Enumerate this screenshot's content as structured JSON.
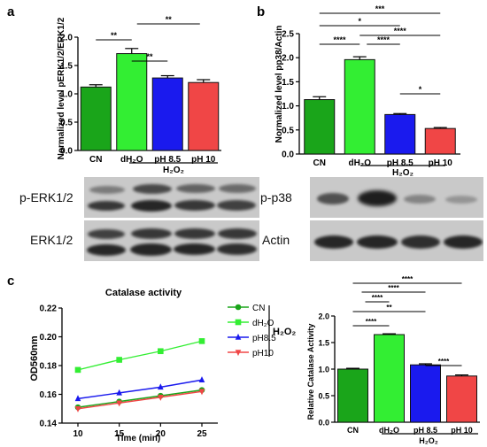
{
  "panels": {
    "a": "a",
    "b": "b",
    "c": "c"
  },
  "h2o2_label": "H₂O₂",
  "blots": {
    "a": {
      "top": "p-ERK1/2",
      "bottom": "ERK1/2"
    },
    "b": {
      "top": "p-p38",
      "bottom": "Actin"
    }
  },
  "colors": {
    "CN": "#1aa51a",
    "dH2O": "#33ee33",
    "pH 8.5": "#1a1aee",
    "pH 10": "#f04646",
    "blot_bg": "#c9c9c9",
    "band": "#1e1e1e"
  },
  "chart_data": [
    {
      "id": "a",
      "type": "bar",
      "ylabel": "Normalized level pERK1/2/ERK1/2",
      "categories": [
        "CN",
        "dH₂O",
        "pH 8.5",
        "pH 10"
      ],
      "values": [
        1.12,
        1.71,
        1.28,
        1.2
      ],
      "errors": [
        0.04,
        0.09,
        0.04,
        0.05
      ],
      "ylim": [
        0,
        2.0
      ],
      "yticks": [
        "0.0",
        "0.5",
        "1.0",
        "1.5",
        "2.0"
      ],
      "significance": [
        {
          "from": 0,
          "to": 1,
          "label": "**"
        },
        {
          "from": 1,
          "to": 2,
          "label": "**"
        },
        {
          "from": 1,
          "to": 3,
          "label": "**"
        }
      ]
    },
    {
      "id": "b",
      "type": "bar",
      "ylabel": "Normalized level pp38/Actin",
      "categories": [
        "CN",
        "dH₂O",
        "pH 8.5",
        "pH 10"
      ],
      "values": [
        1.13,
        1.96,
        0.82,
        0.53
      ],
      "errors": [
        0.06,
        0.06,
        0.02,
        0.02
      ],
      "ylim": [
        0,
        2.5
      ],
      "yticks": [
        "0.0",
        "0.5",
        "1.0",
        "1.5",
        "2.0",
        "2.5"
      ],
      "significance": [
        {
          "from": 0,
          "to": 3,
          "label": "***"
        },
        {
          "from": 0,
          "to": 2,
          "label": "*"
        },
        {
          "from": 1,
          "to": 3,
          "label": "****"
        },
        {
          "from": 0,
          "to": 1,
          "label": "****"
        },
        {
          "from": 1,
          "to": 2,
          "label": "****"
        },
        {
          "from": 2,
          "to": 3,
          "label": "*"
        }
      ]
    },
    {
      "id": "c-line",
      "type": "line",
      "title": "Catalase activity",
      "xlabel": "Time (min)",
      "ylabel": "OD560nm",
      "x": [
        10,
        15,
        20,
        25
      ],
      "xticks": [
        "10",
        "15",
        "20",
        "25"
      ],
      "ylim": [
        0.14,
        0.22
      ],
      "yticks": [
        "0.14",
        "0.16",
        "0.18",
        "0.20",
        "0.22"
      ],
      "series": [
        {
          "name": "CN",
          "values": [
            0.151,
            0.155,
            0.159,
            0.163
          ],
          "marker": "circle"
        },
        {
          "name": "dH₂O",
          "values": [
            0.177,
            0.184,
            0.19,
            0.197
          ],
          "marker": "square"
        },
        {
          "name": "pH8.5",
          "values": [
            0.157,
            0.161,
            0.165,
            0.17
          ],
          "marker": "triangle-up"
        },
        {
          "name": "pH10",
          "values": [
            0.15,
            0.154,
            0.158,
            0.162
          ],
          "marker": "triangle-down"
        }
      ],
      "legend_group_label": "H₂O₂"
    },
    {
      "id": "c-bar",
      "type": "bar",
      "ylabel": "Relative Catalase Activity",
      "categories": [
        "CN",
        "dH₂O",
        "pH 8.5",
        "pH 10"
      ],
      "values": [
        1.0,
        1.65,
        1.08,
        0.87
      ],
      "errors": [
        0.015,
        0.015,
        0.02,
        0.02
      ],
      "ylim": [
        0,
        2.0
      ],
      "yticks": [
        "0.0",
        "0.5",
        "1.0",
        "1.5",
        "2.0"
      ],
      "significance": [
        {
          "from": 0,
          "to": 3,
          "label": "****"
        },
        {
          "from": 0,
          "to": 2,
          "label": "****"
        },
        {
          "from": 0,
          "to": 1,
          "label": "****"
        },
        {
          "from": 0,
          "to": 2,
          "label": "**"
        },
        {
          "from": 0,
          "to": 1,
          "label": "****"
        },
        {
          "from": 2,
          "to": 3,
          "label": "****"
        }
      ]
    }
  ]
}
